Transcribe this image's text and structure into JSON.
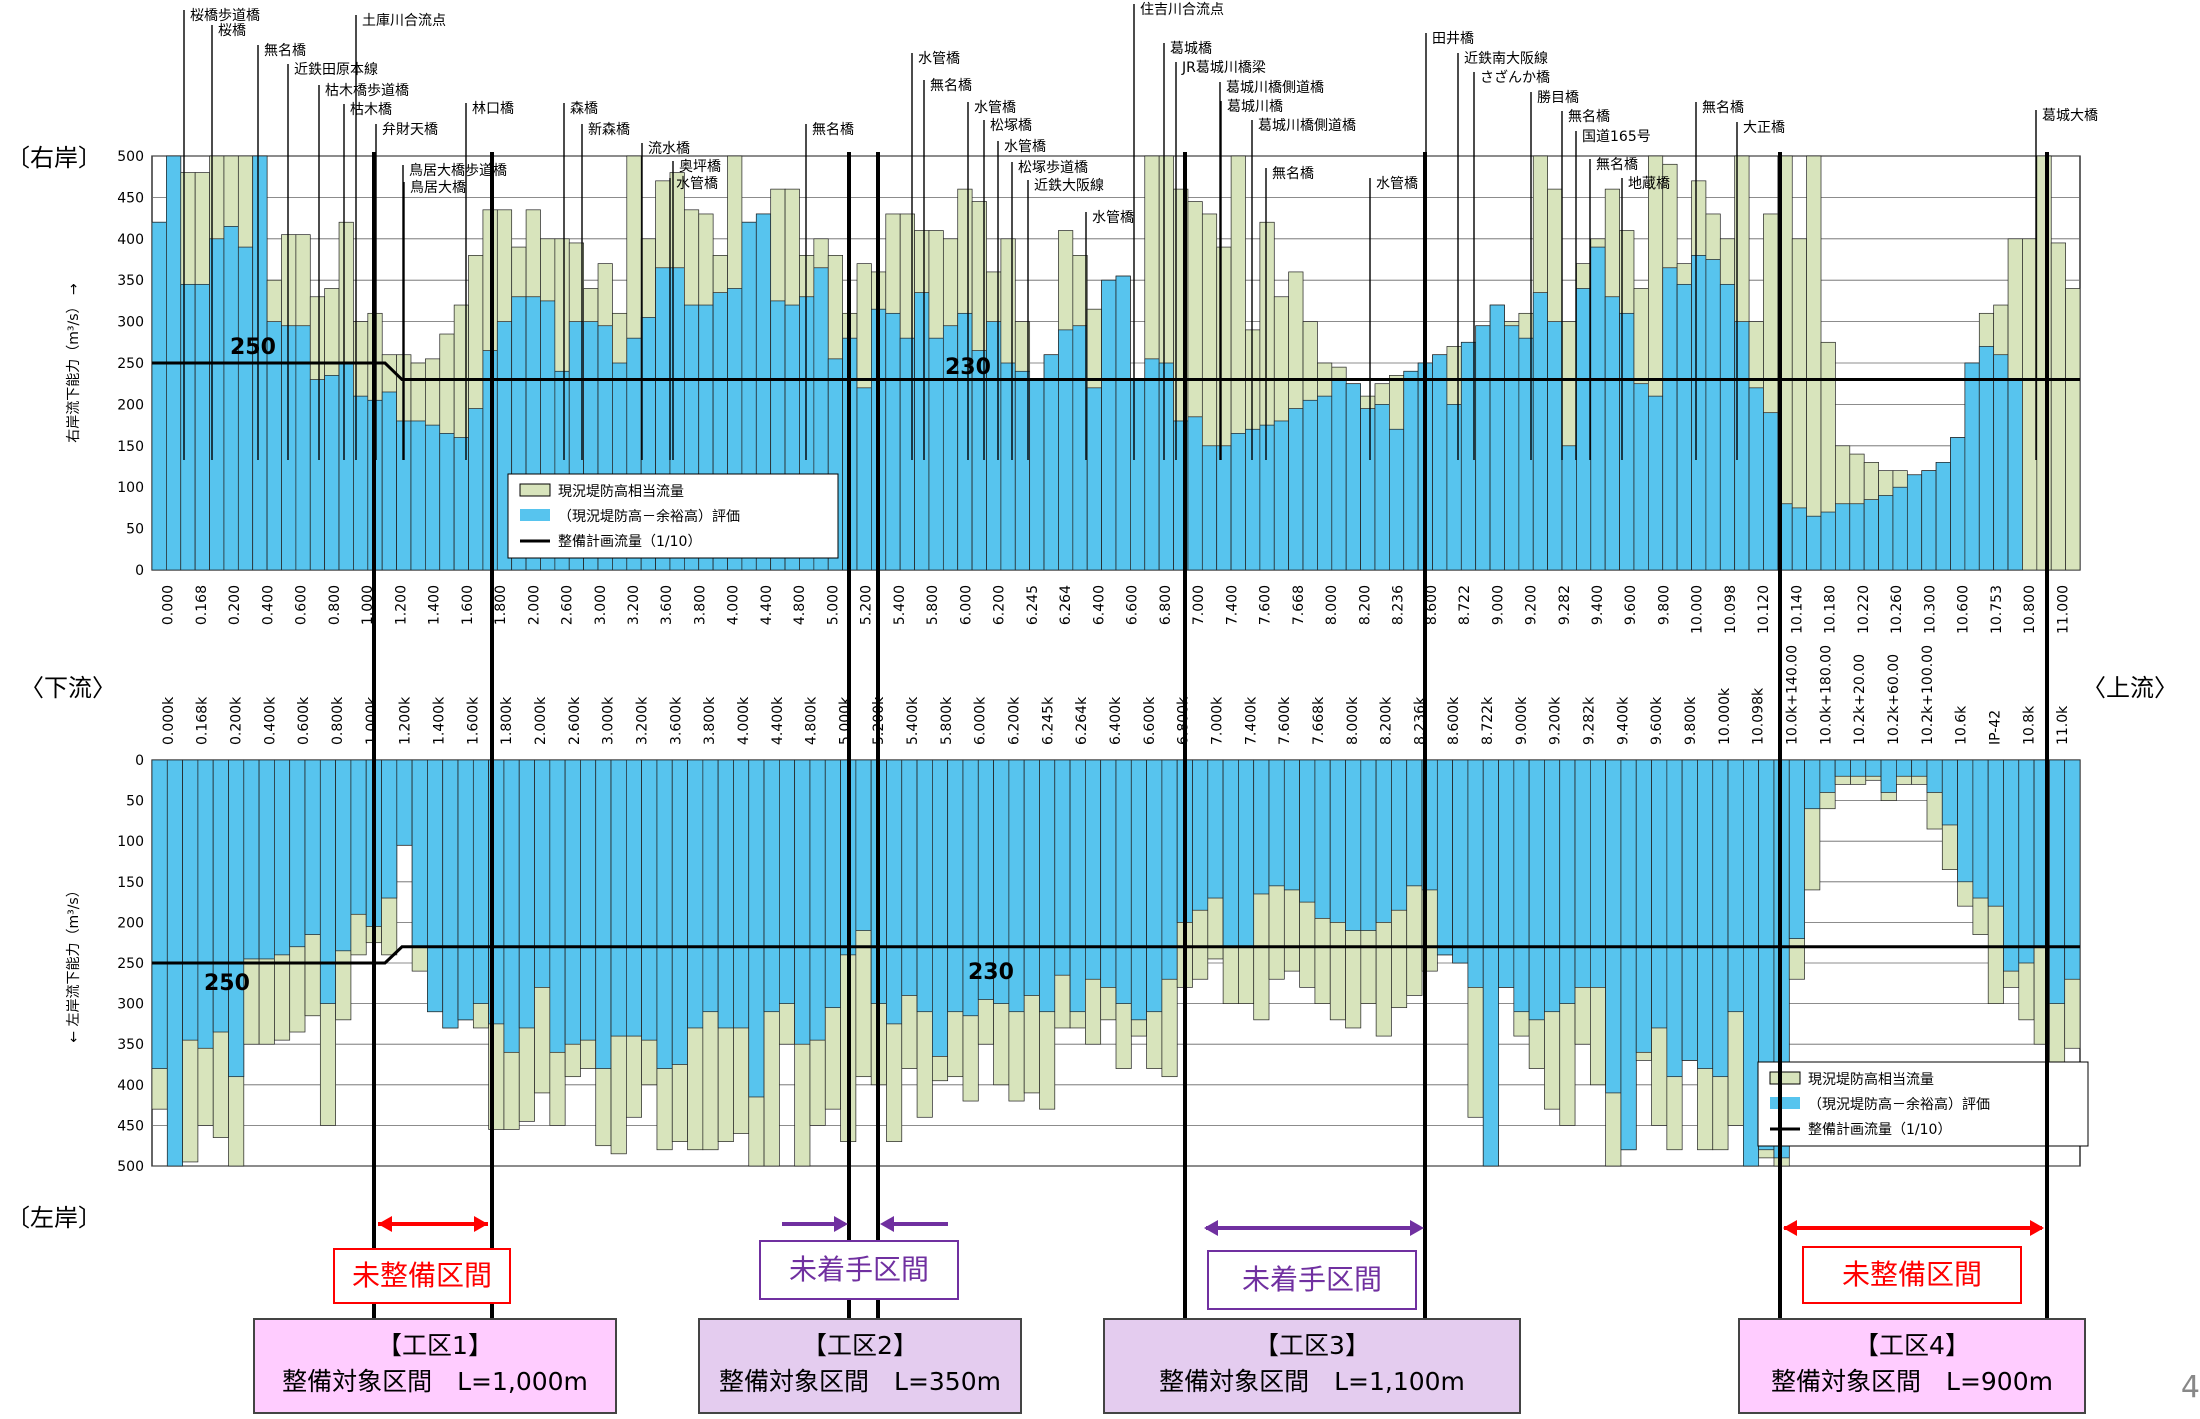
{
  "labels": {
    "right_bank": "〔右岸〕",
    "left_bank": "〔左岸〕",
    "downstream": "〈下流〉",
    "upstream": "〈上流〉",
    "page_number": "4"
  },
  "colors": {
    "cap_fill": "#d8e4bc",
    "eval_fill": "#57c4ee",
    "plan_line": "#000000",
    "red": "#ff0000",
    "purple": "#7030a0",
    "pink_box": "#ffccff",
    "lavender_box": "#e4ccef"
  },
  "chart_data": [
    {
      "type": "bar",
      "name": "right-bank",
      "ylabel": "右岸流下能力（m³/s） →",
      "ylim": [
        0,
        500
      ],
      "yticks": [
        0,
        50,
        100,
        150,
        200,
        250,
        300,
        350,
        400,
        450,
        500
      ],
      "series": [
        {
          "name": "現況堤防高相当流量",
          "role": "capacity"
        },
        {
          "name": "（現況堤防高－余裕高）評価",
          "role": "evaluation"
        },
        {
          "name": "整備計画流量（1/10）",
          "role": "plan"
        }
      ],
      "plan_values": [
        {
          "label": "250",
          "value": 250
        },
        {
          "label": "230",
          "value": 230
        }
      ],
      "ticklabels": [
        "0.000",
        "0.168",
        "0.200",
        "0.400",
        "0.600",
        "0.800",
        "1.000",
        "1.200",
        "1.400",
        "1.600",
        "1.800",
        "2.000",
        "2.600",
        "3.000",
        "3.200",
        "3.600",
        "3.800",
        "4.000",
        "4.400",
        "4.800",
        "5.000",
        "5.200",
        "5.400",
        "5.800",
        "6.000",
        "6.200",
        "6.245",
        "6.264",
        "6.400",
        "6.600",
        "6.800",
        "7.000",
        "7.400",
        "7.600",
        "7.668",
        "8.000",
        "8.200",
        "8.236",
        "8.600",
        "8.722",
        "9.000",
        "9.200",
        "9.282",
        "9.400",
        "9.600",
        "9.800",
        "10.000",
        "10.098",
        "10.120",
        "10.140",
        "10.180",
        "10.220",
        "10.260",
        "10.300",
        "10.600",
        "10.753",
        "10.800",
        "11.000"
      ],
      "capacity": [
        420,
        500,
        480,
        480,
        500,
        500,
        500,
        500,
        350,
        405,
        405,
        330,
        340,
        420,
        300,
        310,
        260,
        260,
        250,
        255,
        285,
        320,
        380,
        435,
        435,
        390,
        435,
        400,
        400,
        395,
        340,
        370,
        310,
        500,
        400,
        470,
        480,
        435,
        430,
        380,
        500,
        420,
        430,
        460,
        460,
        380,
        400,
        380,
        310,
        370,
        360,
        430,
        430,
        410,
        410,
        400,
        460,
        445,
        360,
        400,
        300,
        230,
        260,
        410,
        380,
        315,
        350,
        355,
        230,
        500,
        500,
        460,
        445,
        430,
        390,
        500,
        290,
        420,
        330,
        360,
        300,
        250,
        245,
        225,
        210,
        225,
        235,
        240,
        250,
        260,
        270,
        275,
        295,
        320,
        300,
        310,
        500,
        460,
        300,
        370,
        400,
        460,
        410,
        340,
        500,
        490,
        370,
        470,
        430,
        400,
        500,
        300,
        430,
        500,
        400,
        500,
        275,
        150,
        140,
        130,
        120,
        120,
        115,
        120,
        130,
        160,
        250,
        310,
        320,
        400,
        400,
        500,
        395,
        340
      ],
      "evaluation": [
        420,
        500,
        345,
        345,
        400,
        415,
        390,
        500,
        300,
        295,
        295,
        230,
        235,
        250,
        210,
        205,
        215,
        180,
        180,
        175,
        165,
        160,
        195,
        265,
        300,
        330,
        330,
        325,
        240,
        300,
        300,
        295,
        250,
        280,
        305,
        365,
        365,
        320,
        320,
        335,
        340,
        430,
        440,
        325,
        320,
        330,
        365,
        255,
        280,
        220,
        315,
        310,
        280,
        335,
        280,
        295,
        310,
        265,
        300,
        250,
        240,
        240,
        280,
        290,
        295,
        220,
        360,
        375,
        330,
        255,
        250,
        180,
        185,
        150,
        150,
        165,
        170,
        175,
        180,
        195,
        205,
        210,
        230,
        260,
        195,
        200,
        170,
        355,
        450,
        305,
        200,
        330,
        340,
        400,
        295,
        280,
        335,
        300,
        150,
        340,
        390,
        330,
        310,
        225,
        210,
        365,
        345,
        380,
        375,
        345,
        300,
        220,
        190,
        80,
        75,
        65,
        70,
        80,
        80,
        85,
        90,
        100,
        150,
        210,
        230,
        270,
        270,
        270,
        260,
        230
      ]
    },
    {
      "type": "bar",
      "name": "left-bank",
      "ylabel": "← 左岸流下能力（m³/s）",
      "ylim": [
        0,
        500
      ],
      "inverted": true,
      "yticks": [
        0,
        50,
        100,
        150,
        200,
        250,
        300,
        350,
        400,
        450,
        500
      ],
      "series": [
        {
          "name": "現況堤防高相当流量",
          "role": "capacity"
        },
        {
          "name": "（現況堤防高－余裕高）評価",
          "role": "evaluation"
        },
        {
          "name": "整備計画流量（1/10）",
          "role": "plan"
        }
      ],
      "plan_values": [
        {
          "label": "250",
          "value": 250
        },
        {
          "label": "230",
          "value": 230
        }
      ],
      "ticklabels": [
        "0.000k",
        "0.168k",
        "0.200k",
        "0.400k",
        "0.600k",
        "0.800k",
        "1.000k",
        "1.200k",
        "1.400k",
        "1.600k",
        "1.800k",
        "2.000k",
        "2.600k",
        "3.000k",
        "3.200k",
        "3.600k",
        "3.800k",
        "4.000k",
        "4.400k",
        "4.800k",
        "5.000k",
        "5.200k",
        "5.400k",
        "5.800k",
        "6.000k",
        "6.200k",
        "6.245k",
        "6.264k",
        "6.400k",
        "6.600k",
        "6.800k",
        "7.000k",
        "7.400k",
        "7.600k",
        "7.668k",
        "8.000k",
        "8.200k",
        "8.236k",
        "8.600k",
        "8.722k",
        "9.000k",
        "9.200k",
        "9.282k",
        "9.400k",
        "9.600k",
        "9.800k",
        "10.000k",
        "10.098k",
        "10.0k+140.00",
        "10.0k+180.00",
        "10.2k+20.00",
        "10.2k+60.00",
        "10.2k+100.00",
        "10.6k",
        "IP-42",
        "10.8k",
        "11.0k"
      ],
      "capacity": [
        430,
        500,
        495,
        450,
        465,
        500,
        350,
        350,
        345,
        335,
        315,
        450,
        320,
        240,
        225,
        240,
        105,
        260,
        310,
        330,
        320,
        330,
        455,
        455,
        445,
        410,
        450,
        390,
        380,
        475,
        485,
        440,
        400,
        480,
        470,
        480,
        480,
        470,
        460,
        500,
        500,
        350,
        500,
        450,
        430,
        470,
        390,
        400,
        470,
        380,
        440,
        395,
        390,
        420,
        350,
        400,
        420,
        410,
        430,
        330,
        330,
        350,
        320,
        380,
        340,
        380,
        390,
        280,
        270,
        245,
        300,
        300,
        320,
        270,
        260,
        280,
        300,
        320,
        330,
        300,
        340,
        305,
        290,
        260,
        240,
        250,
        440,
        500,
        280,
        340,
        380,
        430,
        450,
        350,
        400,
        500,
        480,
        370,
        450,
        480,
        370,
        480,
        480,
        450,
        500,
        490,
        500,
        270,
        160,
        60,
        30,
        30,
        25,
        50,
        30,
        30,
        85,
        135,
        180,
        215,
        300,
        280,
        320,
        350,
        400,
        355
      ],
      "evaluation": [
        380,
        500,
        345,
        355,
        335,
        390,
        245,
        245,
        240,
        230,
        215,
        300,
        235,
        190,
        205,
        170,
        180,
        230,
        310,
        330,
        325,
        300,
        325,
        360,
        330,
        280,
        360,
        350,
        345,
        380,
        340,
        340,
        345,
        380,
        375,
        330,
        310,
        330,
        330,
        415,
        310,
        300,
        350,
        345,
        305,
        240,
        210,
        300,
        325,
        290,
        310,
        365,
        310,
        315,
        295,
        300,
        310,
        290,
        310,
        265,
        310,
        270,
        280,
        300,
        320,
        310,
        270,
        200,
        185,
        170,
        230,
        230,
        165,
        155,
        160,
        175,
        195,
        200,
        210,
        210,
        200,
        185,
        155,
        160,
        250,
        260,
        280,
        500,
        300,
        310,
        320,
        310,
        300,
        280,
        280,
        410,
        500,
        360,
        330,
        390,
        440,
        380,
        390,
        310,
        500,
        480,
        490,
        220,
        60,
        40,
        20,
        20,
        20,
        40,
        20,
        20,
        40,
        80,
        150,
        170,
        180,
        260,
        250,
        230,
        300,
        270
      ]
    }
  ],
  "bridges": [
    {
      "name": "桜橋歩道橋"
    },
    {
      "name": "桜橋"
    },
    {
      "name": "無名橋"
    },
    {
      "name": "近鉄田原本線"
    },
    {
      "name": "枯木橋歩道橋"
    },
    {
      "name": "枯木橋"
    },
    {
      "name": "弁財天橋"
    },
    {
      "name": "鳥居大橋歩道橋"
    },
    {
      "name": "鳥居大橋"
    },
    {
      "name": "土庫川合流点"
    },
    {
      "name": "林口橋"
    },
    {
      "name": "森橋"
    },
    {
      "name": "新森橋"
    },
    {
      "name": "流水橋"
    },
    {
      "name": "奥坪橋"
    },
    {
      "name": "水管橋"
    },
    {
      "name": "無名橋"
    },
    {
      "name": "水管橋"
    },
    {
      "name": "無名橋"
    },
    {
      "name": "水管橋"
    },
    {
      "name": "松塚橋"
    },
    {
      "name": "水管橋"
    },
    {
      "name": "松塚歩道橋"
    },
    {
      "name": "近鉄大阪線"
    },
    {
      "name": "水管橋"
    },
    {
      "name": "住吉川合流点"
    },
    {
      "name": "葛城橋"
    },
    {
      "name": "JR葛城川橋梁"
    },
    {
      "name": "葛城川橋側道橋"
    },
    {
      "name": "葛城川橋"
    },
    {
      "name": "葛城川橋側道橋"
    },
    {
      "name": "無名橋"
    },
    {
      "name": "水管橋"
    },
    {
      "name": "田井橋"
    },
    {
      "name": "近鉄南大阪線"
    },
    {
      "name": "さざんか橋"
    },
    {
      "name": "勝目橋"
    },
    {
      "name": "無名橋"
    },
    {
      "name": "国道165号"
    },
    {
      "name": "無名橋"
    },
    {
      "name": "地蔵橋"
    },
    {
      "name": "無名橋"
    },
    {
      "name": "大正橋"
    },
    {
      "name": "葛城大橋"
    }
  ],
  "plan_labels": {
    "p250": "250",
    "p230": "230"
  },
  "legend": {
    "cap": "現況堤防高相当流量",
    "eval": "（現況堤防高－余裕高）評価",
    "plan": "整備計画流量（1/10）"
  },
  "sections": [
    {
      "status": "未整備区間",
      "title": "【工区1】",
      "length": "整備対象区間　L=1,000m"
    },
    {
      "status": "未着手区間",
      "title": "【工区2】",
      "length": "整備対象区間　L=350m"
    },
    {
      "status": "未着手区間",
      "title": "【工区3】",
      "length": "整備対象区間　L=1,100m"
    },
    {
      "status": "未整備区間",
      "title": "【工区4】",
      "length": "整備対象区間　L=900m"
    }
  ]
}
